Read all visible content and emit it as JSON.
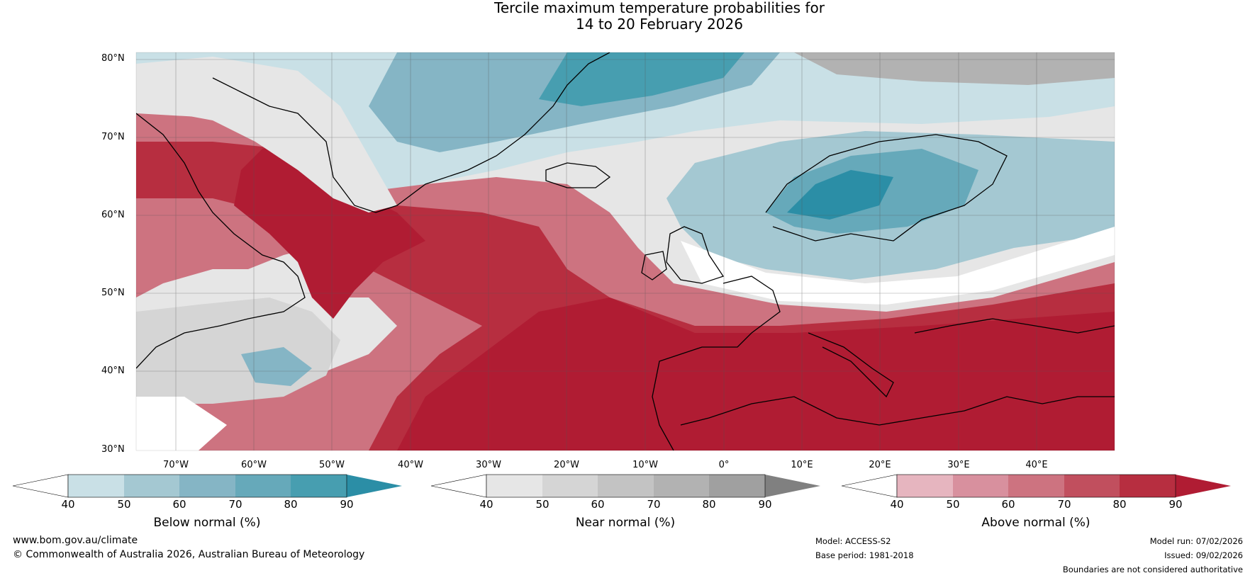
{
  "title_line1": "Tercile maximum temperature probabilities for",
  "title_line2": "14 to 20 February 2026",
  "map": {
    "lat_labels": [
      "80°N",
      "70°N",
      "60°N",
      "50°N",
      "40°N",
      "30°N"
    ],
    "lon_labels": [
      "70°W",
      "60°W",
      "50°W",
      "40°W",
      "30°W",
      "20°W",
      "10°W",
      "0°",
      "10°E",
      "20°E",
      "30°E",
      "40°E"
    ],
    "extent": {
      "lon_min": -80,
      "lon_max": 45,
      "lat_min": 30,
      "lat_max": 81
    }
  },
  "legends": [
    {
      "label": "Below normal (%)",
      "ticks": [
        "40",
        "50",
        "60",
        "70",
        "80",
        "90"
      ],
      "colors": [
        "#c9e0e6",
        "#a4c8d2",
        "#85b5c5",
        "#66a9ba",
        "#479eb0",
        "#2b8ea6"
      ],
      "low_color": "#ffffff",
      "high_color": "#2b8ea6"
    },
    {
      "label": "Near normal (%)",
      "ticks": [
        "40",
        "50",
        "60",
        "70",
        "80",
        "90"
      ],
      "colors": [
        "#e6e6e6",
        "#d5d5d5",
        "#c3c3c3",
        "#b2b2b2",
        "#a0a0a0",
        "#808080"
      ],
      "low_color": "#ffffff",
      "high_color": "#808080"
    },
    {
      "label": "Above normal (%)",
      "ticks": [
        "40",
        "50",
        "60",
        "70",
        "80",
        "90"
      ],
      "colors": [
        "#e6b5bf",
        "#d8909e",
        "#cd7380",
        "#c14f5e",
        "#b72e40",
        "#b01c33"
      ],
      "low_color": "#ffffff",
      "high_color": "#b01c33"
    }
  ],
  "footer": {
    "website": "www.bom.gov.au/climate",
    "copyright": "© Commonwealth of Australia 2026, Australian Bureau of Meteorology",
    "model": "Model: ACCESS-S2",
    "base_period": "Base period: 1981-2018",
    "model_run": "Model run: 07/02/2026",
    "issued": "Issued: 09/02/2026",
    "disclaimer": "Boundaries are not considered authoritative"
  }
}
